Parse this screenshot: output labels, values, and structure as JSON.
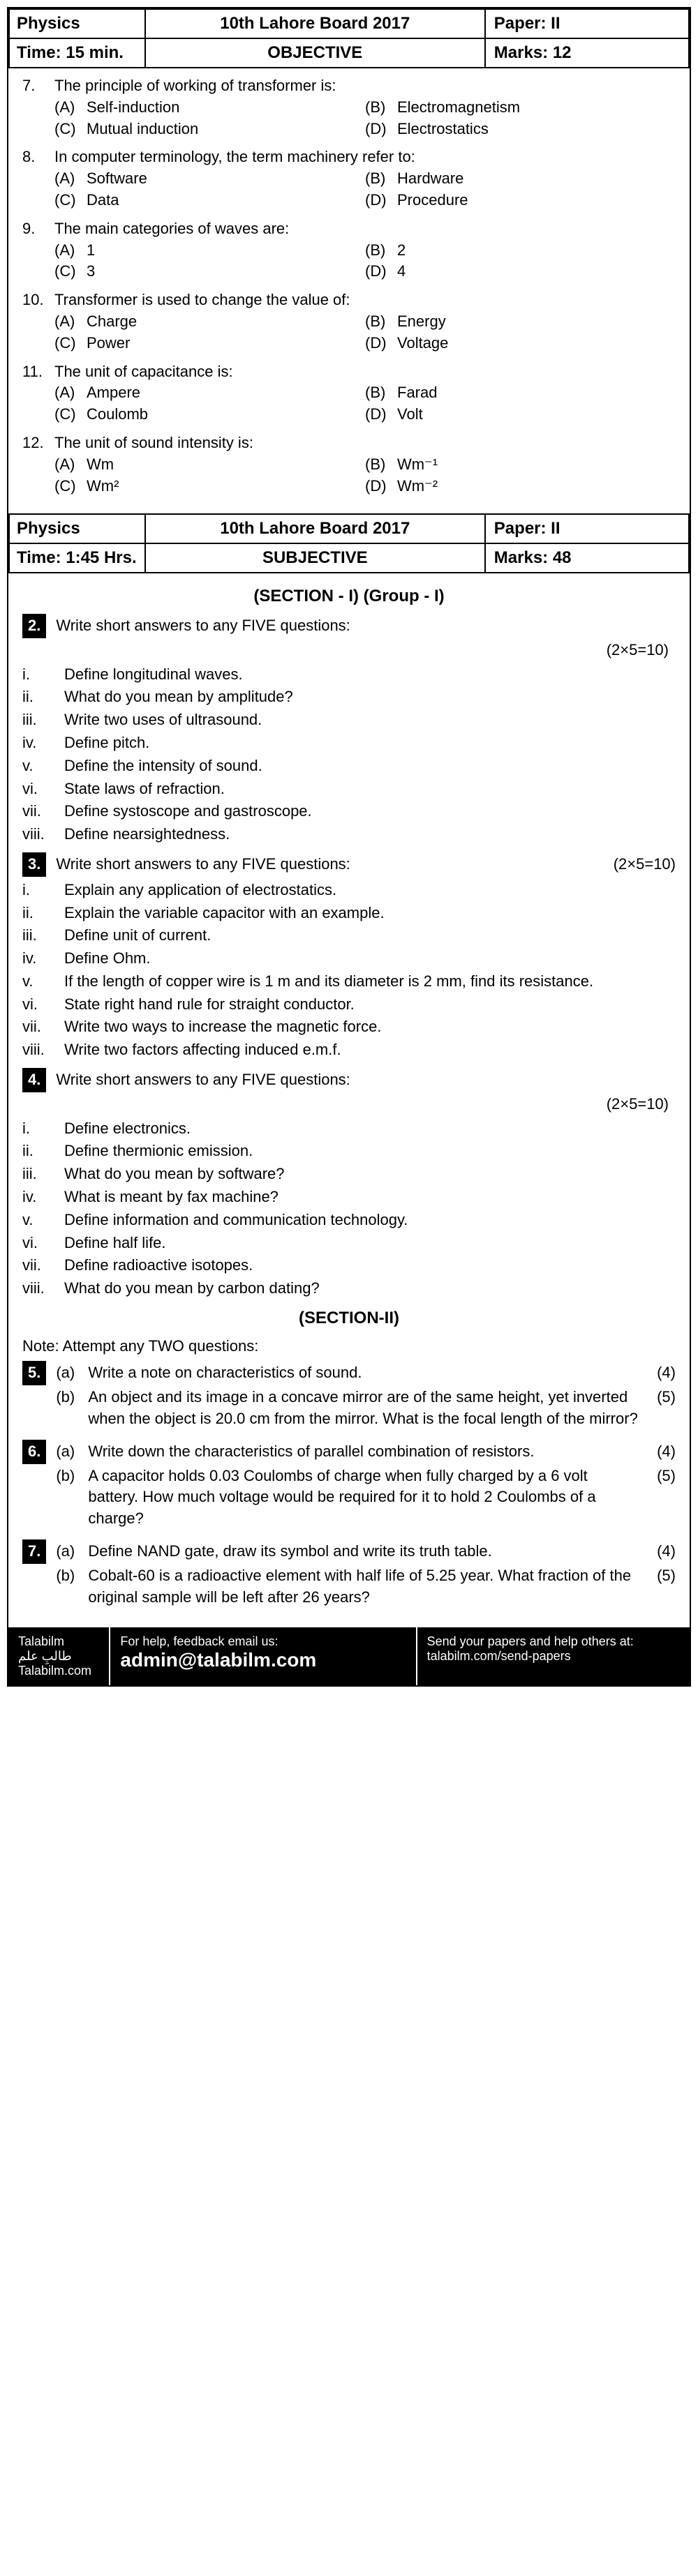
{
  "header1": {
    "subject": "Physics",
    "board": "10th Lahore Board 2017",
    "paper": "Paper: II",
    "time": "Time: 15 min.",
    "type": "OBJECTIVE",
    "marks": "Marks: 12"
  },
  "mcqs": [
    {
      "num": "7.",
      "text": "The principle of working of transformer is:",
      "opts": [
        {
          "l": "(A)",
          "t": "Self-induction"
        },
        {
          "l": "(B)",
          "t": "Electromagnetism"
        },
        {
          "l": "(C)",
          "t": "Mutual induction"
        },
        {
          "l": "(D)",
          "t": "Electrostatics"
        }
      ]
    },
    {
      "num": "8.",
      "text": "In computer terminology, the term machinery refer to:",
      "opts": [
        {
          "l": "(A)",
          "t": "Software"
        },
        {
          "l": "(B)",
          "t": "Hardware"
        },
        {
          "l": "(C)",
          "t": "Data"
        },
        {
          "l": "(D)",
          "t": "Procedure"
        }
      ]
    },
    {
      "num": "9.",
      "text": "The main categories of waves are:",
      "opts": [
        {
          "l": "(A)",
          "t": "1"
        },
        {
          "l": "(B)",
          "t": "2"
        },
        {
          "l": "(C)",
          "t": "3"
        },
        {
          "l": "(D)",
          "t": "4"
        }
      ]
    },
    {
      "num": "10.",
      "text": "Transformer is used to change the value of:",
      "opts": [
        {
          "l": "(A)",
          "t": "Charge"
        },
        {
          "l": "(B)",
          "t": "Energy"
        },
        {
          "l": "(C)",
          "t": "Power"
        },
        {
          "l": "(D)",
          "t": "Voltage"
        }
      ]
    },
    {
      "num": "11.",
      "text": "The unit of capacitance is:",
      "opts": [
        {
          "l": "(A)",
          "t": "Ampere"
        },
        {
          "l": "(B)",
          "t": "Farad"
        },
        {
          "l": "(C)",
          "t": "Coulomb"
        },
        {
          "l": "(D)",
          "t": "Volt"
        }
      ]
    },
    {
      "num": "12.",
      "text": "The unit of sound intensity is:",
      "opts": [
        {
          "l": "(A)",
          "t": "Wm"
        },
        {
          "l": "(B)",
          "t": "Wm⁻¹"
        },
        {
          "l": "(C)",
          "t": "Wm²"
        },
        {
          "l": "(D)",
          "t": "Wm⁻²"
        }
      ]
    }
  ],
  "header2": {
    "subject": "Physics",
    "board": "10th Lahore Board 2017",
    "paper": "Paper: II",
    "time": "Time: 1:45 Hrs.",
    "type": "SUBJECTIVE",
    "marks": "Marks: 48"
  },
  "sectionTitle1": "(SECTION - I) (Group - I)",
  "q2": {
    "box": "2.",
    "instr": "Write short answers to any FIVE questions:",
    "score": "(2×5=10)",
    "items": [
      {
        "r": "i.",
        "t": "Define longitudinal waves."
      },
      {
        "r": "ii.",
        "t": "What do you mean by amplitude?"
      },
      {
        "r": "iii.",
        "t": "Write two uses of ultrasound."
      },
      {
        "r": "iv.",
        "t": "Define pitch."
      },
      {
        "r": "v.",
        "t": "Define the intensity of sound."
      },
      {
        "r": "vi.",
        "t": "State laws of refraction."
      },
      {
        "r": "vii.",
        "t": "Define systoscope and gastroscope."
      },
      {
        "r": "viii.",
        "t": "Define nearsightedness."
      }
    ]
  },
  "q3": {
    "box": "3.",
    "instr": "Write short answers to any FIVE questions:",
    "score": "(2×5=10)",
    "items": [
      {
        "r": "i.",
        "t": "Explain any application of electrostatics."
      },
      {
        "r": "ii.",
        "t": "Explain the variable capacitor with an example."
      },
      {
        "r": "iii.",
        "t": "Define unit of current."
      },
      {
        "r": "iv.",
        "t": "Define Ohm."
      },
      {
        "r": "v.",
        "t": "If the length of copper wire is 1 m and its diameter is 2 mm, find its resistance."
      },
      {
        "r": "vi.",
        "t": "State right hand rule for straight conductor."
      },
      {
        "r": "vii.",
        "t": "Write two ways to increase the magnetic force."
      },
      {
        "r": "viii.",
        "t": "Write two factors affecting induced e.m.f."
      }
    ]
  },
  "q4": {
    "box": "4.",
    "instr": "Write short answers to any FIVE questions:",
    "score": "(2×5=10)",
    "items": [
      {
        "r": "i.",
        "t": "Define electronics."
      },
      {
        "r": "ii.",
        "t": "Define thermionic emission."
      },
      {
        "r": "iii.",
        "t": "What do you mean by software?"
      },
      {
        "r": "iv.",
        "t": "What is meant by fax machine?"
      },
      {
        "r": "v.",
        "t": "Define information and communication technology."
      },
      {
        "r": "vi.",
        "t": "Define half life."
      },
      {
        "r": "vii.",
        "t": "Define radioactive isotopes."
      },
      {
        "r": "viii.",
        "t": "What do you mean by carbon dating?"
      }
    ]
  },
  "sectionTitle2": "(SECTION-II)",
  "note": "Note: Attempt any TWO questions:",
  "q5": {
    "box": "5.",
    "parts": [
      {
        "l": "(a)",
        "t": "Write a note on characteristics of sound.",
        "m": "(4)"
      },
      {
        "l": "(b)",
        "t": "An object and its image in a concave mirror are of the same height, yet inverted when the object is 20.0 cm from the mirror. What is the focal length of the mirror?",
        "m": "(5)"
      }
    ]
  },
  "q6": {
    "box": "6.",
    "parts": [
      {
        "l": "(a)",
        "t": "Write down the characteristics of parallel combination of resistors.",
        "m": "(4)"
      },
      {
        "l": "(b)",
        "t": "A capacitor holds 0.03 Coulombs of charge when fully charged by a 6 volt battery. How much voltage would be required for it to hold 2 Coulombs of a charge?",
        "m": "(5)"
      }
    ]
  },
  "q7": {
    "box": "7.",
    "parts": [
      {
        "l": "(a)",
        "t": "Define NAND gate, draw its symbol and write its truth table.",
        "m": "(4)"
      },
      {
        "l": "(b)",
        "t": "Cobalt-60 is a radioactive element with half life of 5.25 year. What fraction of the original sample will be left after 26 years?",
        "m": "(5)"
      }
    ]
  },
  "footer": {
    "brand1": "Talabilm",
    "brand2": "طالبِ علم",
    "brand3": "Talabilm.com",
    "help1": "For help, feedback email us:",
    "help2": "admin@talabilm.com",
    "send1": "Send your papers and help others at:",
    "send2": "talabilm.com/send-papers"
  }
}
